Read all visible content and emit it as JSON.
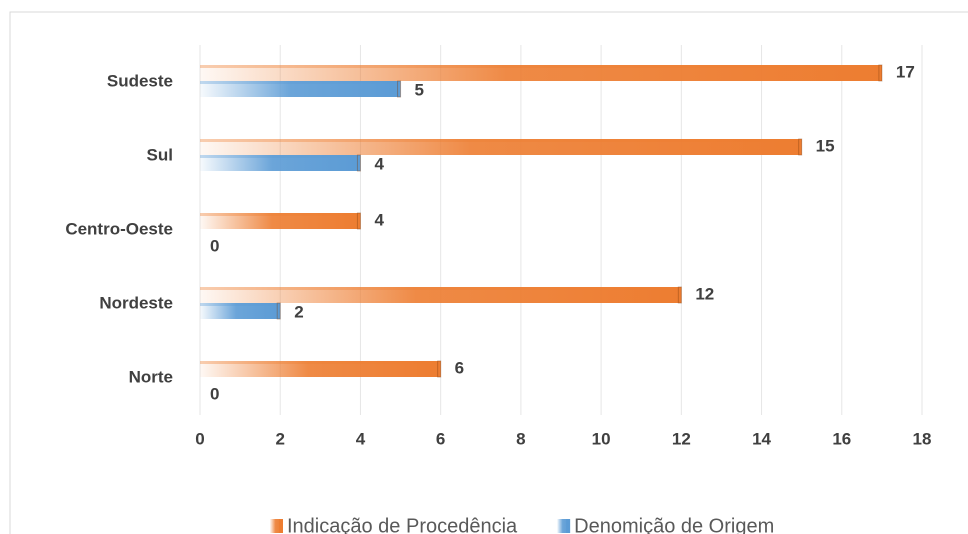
{
  "chart_data": {
    "type": "hbar",
    "categories": [
      "Sudeste",
      "Sul",
      "Centro-Oeste",
      "Nordeste",
      "Norte"
    ],
    "series": [
      {
        "name": "Indicação de Procedência",
        "color": "#ed7d31",
        "values": [
          17,
          15,
          4,
          12,
          6
        ]
      },
      {
        "name": "Denomição de Origem",
        "color": "#5b9bd5",
        "values": [
          5,
          4,
          0,
          2,
          0
        ]
      }
    ],
    "xlim": [
      0,
      18
    ],
    "xticks": [
      0,
      2,
      4,
      6,
      8,
      10,
      12,
      14,
      16,
      18
    ],
    "grid": true,
    "legend": "bottom"
  }
}
